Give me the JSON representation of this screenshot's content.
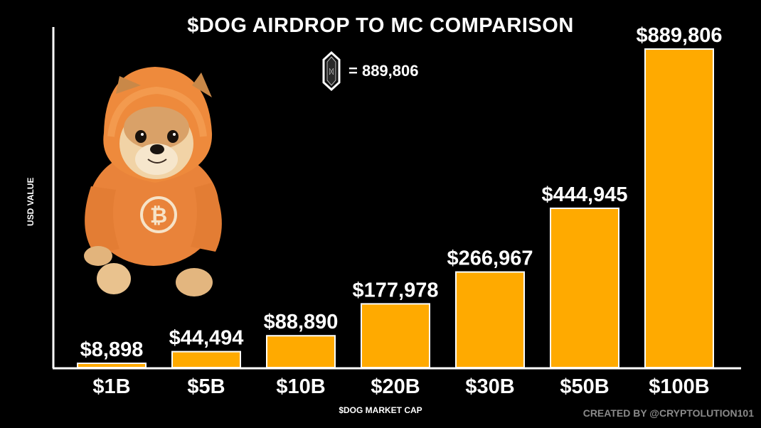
{
  "title": "$DOG AIRDROP TO MC COMPARISON",
  "token_ratio": "= 889,806",
  "ylabel": "USD VALUE",
  "xlabel": "$DOG MARKET CAP",
  "credit": "CREATED BY @CRYPTOLUTION101",
  "colors": {
    "bar": "#FFAA00",
    "bar_edge": "#FFFFFF",
    "axis": "#FFFFFF",
    "background": "#000000",
    "hoodie": "#F08A3A"
  },
  "chart_data": {
    "type": "bar",
    "title": "$DOG AIRDROP TO MC COMPARISON",
    "xlabel": "$DOG MARKET CAP",
    "ylabel": "USD VALUE",
    "categories": [
      "$1B",
      "$5B",
      "$10B",
      "$20B",
      "$30B",
      "$50B",
      "$100B"
    ],
    "values": [
      8898,
      44494,
      88890,
      177978,
      266967,
      444945,
      889806
    ],
    "value_labels": [
      "$8,898",
      "$44,494",
      "$88,890",
      "$177,978",
      "$266,967",
      "$444,945",
      "$889,806"
    ],
    "ylim": [
      0,
      889806
    ],
    "grid": false,
    "legend": "none"
  }
}
